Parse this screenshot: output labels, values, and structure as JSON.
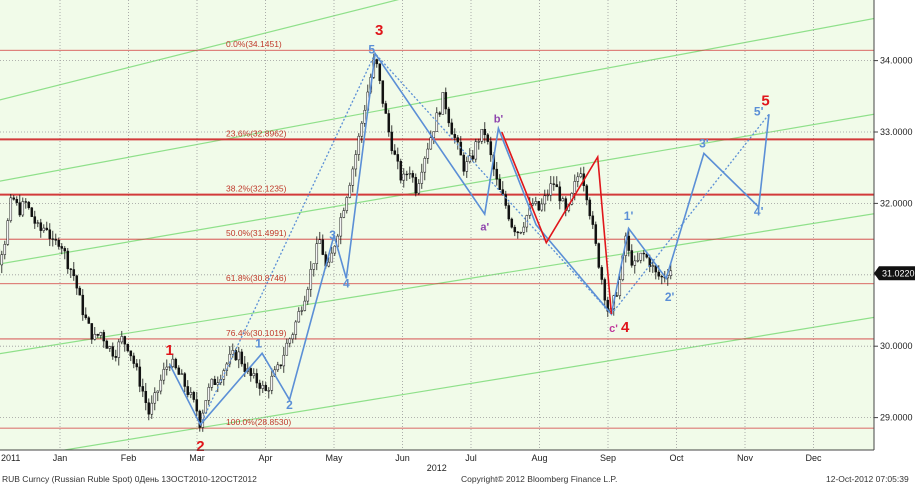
{
  "chart_data": {
    "type": "candlestick",
    "title": "",
    "xlabel": "",
    "ylabel": "",
    "ylim": [
      28.7,
      35.0
    ],
    "y_ticks": [
      "29.0000",
      "30.0000",
      "31.0000",
      "32.0000",
      "33.0000",
      "34.0000"
    ],
    "x_ticks": [
      {
        "label": "2011",
        "m": 0.0
      },
      {
        "label": "Jan",
        "m": 1.0
      },
      {
        "label": "Feb",
        "m": 2.0
      },
      {
        "label": "Mar",
        "m": 3.0
      },
      {
        "label": "Apr",
        "m": 4.0
      },
      {
        "label": "May",
        "m": 5.0
      },
      {
        "label": "Jun",
        "m": 6.0
      },
      {
        "label": "Jul",
        "m": 7.0
      },
      {
        "label": "Aug",
        "m": 8.0
      },
      {
        "label": "Sep",
        "m": 9.0
      },
      {
        "label": "Oct",
        "m": 10.0
      },
      {
        "label": "Nov",
        "m": 11.0
      },
      {
        "label": "Dec",
        "m": 12.0
      }
    ],
    "year_label": {
      "label": "2012",
      "m": 6.5
    },
    "last_price": {
      "label": "31.0220",
      "value": 31.022
    },
    "fib_levels": [
      {
        "label": "0.0%(34.1451)",
        "value": 34.1451
      },
      {
        "label": "23.6%(32.8962)",
        "value": 32.8962
      },
      {
        "label": "38.2%(32.1235)",
        "value": 32.1235
      },
      {
        "label": "50.0%(31.4991)",
        "value": 31.4991
      },
      {
        "label": "61.8%(30.8746)",
        "value": 30.8746
      },
      {
        "label": "76.4%(30.1019)",
        "value": 30.1019
      },
      {
        "label": "100.0%(28.8530)",
        "value": 28.853
      }
    ],
    "price_path": [
      [
        -0.2,
        32.0
      ],
      [
        0.0,
        31.6
      ],
      [
        0.1,
        31.2
      ],
      [
        0.2,
        31.5
      ],
      [
        0.3,
        32.1
      ],
      [
        0.4,
        31.9
      ],
      [
        0.5,
        32.0
      ],
      [
        0.6,
        31.8
      ],
      [
        0.7,
        31.6
      ],
      [
        0.8,
        31.7
      ],
      [
        0.9,
        31.4
      ],
      [
        1.0,
        31.5
      ],
      [
        1.1,
        31.2
      ],
      [
        1.2,
        31.0
      ],
      [
        1.3,
        30.6
      ],
      [
        1.4,
        30.3
      ],
      [
        1.5,
        30.1
      ],
      [
        1.6,
        30.2
      ],
      [
        1.7,
        30.0
      ],
      [
        1.8,
        29.9
      ],
      [
        1.9,
        30.1
      ],
      [
        2.0,
        30.0
      ],
      [
        2.1,
        29.7
      ],
      [
        2.2,
        29.4
      ],
      [
        2.3,
        29.05
      ],
      [
        2.4,
        29.3
      ],
      [
        2.5,
        29.6
      ],
      [
        2.6,
        29.8
      ],
      [
        2.7,
        29.65
      ],
      [
        2.8,
        29.5
      ],
      [
        2.9,
        29.3
      ],
      [
        3.0,
        29.1
      ],
      [
        3.05,
        28.9
      ],
      [
        3.1,
        29.2
      ],
      [
        3.2,
        29.45
      ],
      [
        3.3,
        29.55
      ],
      [
        3.4,
        29.7
      ],
      [
        3.5,
        29.85
      ],
      [
        3.6,
        29.9
      ],
      [
        3.7,
        29.7
      ],
      [
        3.8,
        29.55
      ],
      [
        3.9,
        29.5
      ],
      [
        4.0,
        29.35
      ],
      [
        4.1,
        29.55
      ],
      [
        4.2,
        29.7
      ],
      [
        4.3,
        30.0
      ],
      [
        4.4,
        30.2
      ],
      [
        4.5,
        30.5
      ],
      [
        4.6,
        30.8
      ],
      [
        4.7,
        31.2
      ],
      [
        4.8,
        31.5
      ],
      [
        4.9,
        31.0
      ],
      [
        5.0,
        31.4
      ],
      [
        5.1,
        31.8
      ],
      [
        5.2,
        32.2
      ],
      [
        5.3,
        32.6
      ],
      [
        5.4,
        33.1
      ],
      [
        5.5,
        33.6
      ],
      [
        5.6,
        34.05
      ],
      [
        5.7,
        33.5
      ],
      [
        5.8,
        33.0
      ],
      [
        5.9,
        32.6
      ],
      [
        6.0,
        32.3
      ],
      [
        6.1,
        32.5
      ],
      [
        6.2,
        32.2
      ],
      [
        6.3,
        32.6
      ],
      [
        6.4,
        32.9
      ],
      [
        6.5,
        33.2
      ],
      [
        6.6,
        33.5
      ],
      [
        6.7,
        33.1
      ],
      [
        6.8,
        32.8
      ],
      [
        6.9,
        32.5
      ],
      [
        7.0,
        32.6
      ],
      [
        7.1,
        32.9
      ],
      [
        7.2,
        33.0
      ],
      [
        7.3,
        32.6
      ],
      [
        7.4,
        32.2
      ],
      [
        7.5,
        32.0
      ],
      [
        7.6,
        31.7
      ],
      [
        7.7,
        31.6
      ],
      [
        7.8,
        31.8
      ],
      [
        7.9,
        32.0
      ],
      [
        8.0,
        31.9
      ],
      [
        8.1,
        32.1
      ],
      [
        8.2,
        32.3
      ],
      [
        8.3,
        32.1
      ],
      [
        8.4,
        31.8
      ],
      [
        8.5,
        32.2
      ],
      [
        8.6,
        32.5
      ],
      [
        8.7,
        32.1
      ],
      [
        8.8,
        31.5
      ],
      [
        8.9,
        31.0
      ],
      [
        9.0,
        30.5
      ],
      [
        9.05,
        30.45
      ],
      [
        9.1,
        30.7
      ],
      [
        9.2,
        31.0
      ],
      [
        9.25,
        31.6
      ],
      [
        9.3,
        31.3
      ],
      [
        9.4,
        31.1
      ],
      [
        9.5,
        31.3
      ],
      [
        9.6,
        31.2
      ],
      [
        9.7,
        31.0
      ],
      [
        9.8,
        30.95
      ],
      [
        9.9,
        31.1
      ],
      [
        9.95,
        31.02
      ]
    ],
    "wave_labels": [
      {
        "label": "1",
        "color": "#e0161b",
        "size": 15,
        "m": 2.6,
        "v": 29.88
      },
      {
        "label": "2",
        "color": "#e0161b",
        "size": 15,
        "m": 3.05,
        "v": 28.53
      },
      {
        "label": "3",
        "color": "#e0161b",
        "size": 15,
        "m": 5.66,
        "v": 34.36
      },
      {
        "label": "4",
        "color": "#e0161b",
        "size": 15,
        "m": 9.25,
        "v": 30.2
      },
      {
        "label": "5",
        "color": "#e0161b",
        "size": 15,
        "m": 11.3,
        "v": 33.37
      },
      {
        "label": "1",
        "color": "#5b8fd6",
        "size": 12,
        "m": 3.9,
        "v": 29.98
      },
      {
        "label": "2",
        "color": "#5b8fd6",
        "size": 12,
        "m": 4.35,
        "v": 29.12
      },
      {
        "label": "3",
        "color": "#5b8fd6",
        "size": 12,
        "m": 4.98,
        "v": 31.5
      },
      {
        "label": "4",
        "color": "#5b8fd6",
        "size": 12,
        "m": 5.18,
        "v": 30.82
      },
      {
        "label": "5",
        "color": "#5b8fd6",
        "size": 12,
        "m": 5.55,
        "v": 34.1
      },
      {
        "label": "a'",
        "color": "#8e44ad",
        "size": 11,
        "m": 7.2,
        "v": 31.62
      },
      {
        "label": "b'",
        "color": "#8e44ad",
        "size": 11,
        "m": 7.4,
        "v": 33.13
      },
      {
        "label": "c'",
        "color": "#c0399b",
        "size": 11,
        "m": 9.08,
        "v": 30.2
      },
      {
        "label": "1'",
        "color": "#5b8fd6",
        "size": 12,
        "m": 9.3,
        "v": 31.77
      },
      {
        "label": "2'",
        "color": "#5b8fd6",
        "size": 12,
        "m": 9.9,
        "v": 30.63
      },
      {
        "label": "3'",
        "color": "#5b8fd6",
        "size": 12,
        "m": 10.4,
        "v": 32.78
      },
      {
        "label": "4'",
        "color": "#5b8fd6",
        "size": 12,
        "m": 11.2,
        "v": 31.83
      },
      {
        "label": "5'",
        "color": "#5b8fd6",
        "size": 12,
        "m": 11.2,
        "v": 33.23
      }
    ],
    "wave_lines": [
      {
        "color": "#5b8fd6",
        "dash": false,
        "points": [
          [
            2.6,
            29.75
          ],
          [
            3.05,
            28.9
          ],
          [
            3.95,
            29.9
          ],
          [
            4.35,
            29.25
          ],
          [
            5.0,
            31.55
          ],
          [
            5.18,
            30.95
          ],
          [
            5.6,
            34.1
          ],
          [
            7.2,
            31.85
          ],
          [
            7.4,
            33.05
          ],
          [
            7.95,
            31.7
          ],
          [
            9.05,
            30.45
          ],
          [
            9.3,
            31.65
          ],
          [
            9.85,
            30.95
          ],
          [
            10.4,
            32.7
          ],
          [
            11.2,
            31.95
          ],
          [
            11.35,
            33.25
          ]
        ]
      },
      {
        "color": "#5b8fd6",
        "dash": true,
        "points": [
          [
            3.05,
            28.9
          ],
          [
            5.6,
            34.1
          ],
          [
            9.05,
            30.45
          ]
        ]
      },
      {
        "color": "#5b8fd6",
        "dash": true,
        "points": [
          [
            9.05,
            30.45
          ],
          [
            11.35,
            33.25
          ]
        ]
      },
      {
        "color": "#e0161b",
        "dash": false,
        "points": [
          [
            7.45,
            33.0
          ],
          [
            8.1,
            31.45
          ],
          [
            8.85,
            32.65
          ],
          [
            9.05,
            30.45
          ]
        ]
      }
    ],
    "channel_lines": [
      [
        [
          -0.5,
          33.3
        ],
        [
          8.2,
          35.4
        ]
      ],
      [
        [
          -0.5,
          32.2
        ],
        [
          13.5,
          34.7
        ]
      ],
      [
        [
          -0.5,
          31.05
        ],
        [
          13.5,
          33.35
        ]
      ],
      [
        [
          -0.5,
          29.8
        ],
        [
          13.5,
          31.95
        ]
      ],
      [
        [
          -0.5,
          28.3
        ],
        [
          13.5,
          30.5
        ]
      ]
    ],
    "footer_left": "RUB Curncy (Russian Ruble Spot) 0День 13OCT2010-12OCT2012",
    "footer_center": "Copyright© 2012 Bloomberg Finance L.P.",
    "footer_right": "12-Oct-2012 07:05:39"
  }
}
